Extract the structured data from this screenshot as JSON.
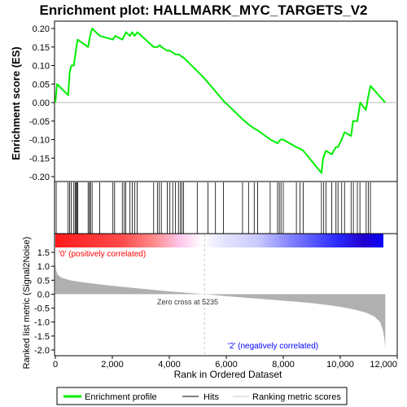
{
  "chart_data": {
    "type": "line",
    "title": "Enrichment plot: HALLMARK_MYC_TARGETS_V2",
    "colors": {
      "profile": "#00ee00",
      "hits": "#000000",
      "metric_fill": "#b0b0b0",
      "zero_line": "#c8c8c8",
      "positive_label": "#ff0000",
      "negative_label": "#0000ff",
      "bar_red": "#ff1a1a",
      "bar_blue": "#0a00ff"
    },
    "enrichment_panel": {
      "ylabel": "Enrichment score (ES)",
      "ylim": [
        -0.2,
        0.22
      ],
      "yticks": [
        "0.20",
        "0.15",
        "0.10",
        "0.05",
        "0.00",
        "-0.05",
        "-0.10",
        "-0.15",
        "-0.20"
      ],
      "ytick_values": [
        0.2,
        0.15,
        0.1,
        0.05,
        0.0,
        -0.05,
        -0.1,
        -0.15,
        -0.2
      ],
      "profile": {
        "x": [
          0,
          60,
          450,
          500,
          560,
          650,
          720,
          780,
          1150,
          1220,
          1290,
          1560,
          2020,
          2100,
          2350,
          2420,
          2480,
          2620,
          2700,
          2780,
          2880,
          3450,
          3580,
          3660,
          3730,
          3920,
          4020,
          4120,
          4220,
          4330,
          4420,
          4520,
          4980,
          5235,
          5900,
          6570,
          6800,
          6980,
          7100,
          7550,
          7800,
          7900,
          8000,
          8450,
          8600,
          8700,
          9340,
          9400,
          9500,
          9700,
          9850,
          9920,
          10050,
          10150,
          10380,
          10450,
          10600,
          10700,
          10900,
          10980,
          11060,
          11580
        ],
        "y": [
          0.0,
          0.05,
          0.02,
          0.08,
          0.1,
          0.1,
          0.14,
          0.17,
          0.15,
          0.18,
          0.2,
          0.18,
          0.17,
          0.18,
          0.17,
          0.18,
          0.19,
          0.18,
          0.19,
          0.18,
          0.19,
          0.15,
          0.15,
          0.155,
          0.15,
          0.14,
          0.14,
          0.135,
          0.13,
          0.13,
          0.125,
          0.12,
          0.085,
          0.065,
          0.005,
          -0.045,
          -0.06,
          -0.07,
          -0.075,
          -0.1,
          -0.11,
          -0.1,
          -0.1,
          -0.12,
          -0.125,
          -0.13,
          -0.19,
          -0.15,
          -0.13,
          -0.14,
          -0.12,
          -0.12,
          -0.1,
          -0.08,
          -0.09,
          -0.05,
          -0.05,
          0.0,
          -0.02,
          0.015,
          0.045,
          0.0
        ]
      },
      "legend_profile": "Enrichment profile"
    },
    "hits_panel": {
      "positions": [
        30,
        450,
        500,
        560,
        650,
        700,
        720,
        760,
        790,
        1150,
        1200,
        1230,
        1290,
        1560,
        2020,
        2080,
        2350,
        2420,
        2470,
        2620,
        2700,
        2790,
        2870,
        3450,
        3580,
        3650,
        3720,
        3930,
        4020,
        4120,
        4210,
        4320,
        4390,
        4440,
        4500,
        4980,
        5360,
        5620,
        5900,
        6570,
        6780,
        6980,
        7100,
        7540,
        7800,
        7860,
        7920,
        8000,
        8460,
        8590,
        8700,
        9340,
        9420,
        9500,
        9700,
        9850,
        9920,
        10050,
        10150,
        10380,
        10460,
        10600,
        10690,
        10910,
        10990,
        11060
      ],
      "legend_hits": "Hits"
    },
    "metric_panel": {
      "ylabel": "Ranked list metric (Signal2Noise)",
      "ylim": [
        -2.1,
        1.6
      ],
      "yticks": [
        "1.5",
        "1.0",
        "0.5",
        "0.0",
        "-0.5",
        "-1.0",
        "-1.5",
        "-2.0"
      ],
      "ytick_values": [
        1.5,
        1.0,
        0.5,
        0.0,
        -0.5,
        -1.0,
        -1.5,
        -2.0
      ],
      "curve": {
        "x": [
          0,
          30,
          80,
          200,
          500,
          1000,
          2000,
          3000,
          4000,
          5235,
          6000,
          7000,
          8000,
          9000,
          9500,
          10000,
          10500,
          10900,
          11200,
          11400,
          11500,
          11550,
          11580
        ],
        "y": [
          1.1,
          0.85,
          0.7,
          0.6,
          0.5,
          0.42,
          0.3,
          0.2,
          0.1,
          0.0,
          -0.07,
          -0.15,
          -0.23,
          -0.32,
          -0.38,
          -0.45,
          -0.55,
          -0.66,
          -0.8,
          -1.0,
          -1.3,
          -1.6,
          -1.95
        ]
      },
      "zero_cross_label": "Zero cross at 5235",
      "zero_cross_x": 5235,
      "positive_label": "'0' (positively correlated)",
      "negative_label": "'2' (negatively correlated)",
      "legend_metric": "Ranking metric scores"
    },
    "x_axis": {
      "xlabel": "Rank in Ordered Dataset",
      "xlim": [
        0,
        12000
      ],
      "xticks": [
        "0",
        "2,000",
        "4,000",
        "6,000",
        "8,000",
        "10,000",
        "12,000"
      ],
      "xtick_values": [
        0,
        2000,
        4000,
        6000,
        8000,
        10000,
        12000
      ],
      "n_genes": 11580
    }
  }
}
